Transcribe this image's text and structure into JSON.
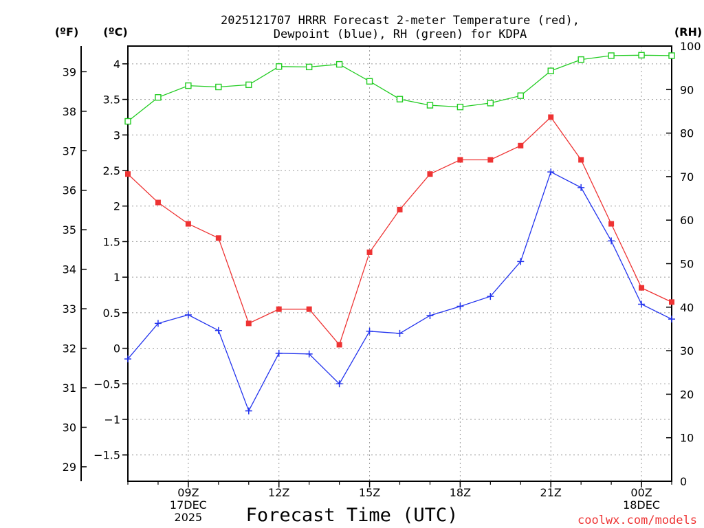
{
  "chart_data": {
    "type": "line",
    "title_lines": [
      "2025121707 HRRR Forecast 2-meter Temperature (red),",
      "Dewpoint (blue), RH (green) for KDPA"
    ],
    "xlabel": "Forecast Time (UTC)",
    "credit": "coolwx.com/models",
    "units": {
      "fahrenheit": "(ºF)",
      "celsius": "(ºC)",
      "rh": "(RH)"
    },
    "x_hours": [
      7,
      8,
      9,
      10,
      11,
      12,
      13,
      14,
      15,
      16,
      17,
      18,
      19,
      20,
      21,
      22,
      23,
      24,
      25
    ],
    "x_ticks": [
      {
        "hour": 9,
        "lines": [
          "09Z",
          "17DEC",
          "2025"
        ]
      },
      {
        "hour": 12,
        "lines": [
          "12Z"
        ]
      },
      {
        "hour": 15,
        "lines": [
          "15Z"
        ]
      },
      {
        "hour": 18,
        "lines": [
          "18Z"
        ]
      },
      {
        "hour": 21,
        "lines": [
          "21Z"
        ]
      },
      {
        "hour": 24,
        "lines": [
          "00Z",
          "18DEC"
        ]
      }
    ],
    "celsius_axis": {
      "ylim": [
        -1.87,
        4.25
      ],
      "ticks": [
        4,
        3.5,
        3,
        2.5,
        2,
        1.5,
        1,
        0.5,
        0,
        -0.5,
        -1,
        -1.5
      ],
      "labels": [
        "4",
        "3.5",
        "3",
        "2.5",
        "2",
        "1.5",
        "1",
        "0.5",
        "0",
        "−0.5",
        "−1",
        "−1.5"
      ]
    },
    "fahrenheit_axis": {
      "ticks": [
        39,
        38,
        37,
        36,
        35,
        34,
        33,
        32,
        31,
        30,
        29
      ],
      "labels": [
        "39",
        "38",
        "37",
        "36",
        "35",
        "34",
        "33",
        "32",
        "31",
        "30",
        "29"
      ]
    },
    "rh_axis": {
      "ylim": [
        0,
        100
      ],
      "ticks": [
        100,
        90,
        80,
        70,
        60,
        50,
        40,
        30,
        20,
        10,
        0
      ],
      "labels": [
        "100",
        "90",
        "80",
        "70",
        "60",
        "50",
        "40",
        "30",
        "20",
        "10",
        "0"
      ]
    },
    "series": [
      {
        "name": "2-meter Temperature",
        "axis": "celsius",
        "color": "#ee3333",
        "marker": "filled-square",
        "values": [
          2.45,
          2.05,
          1.75,
          1.55,
          0.35,
          0.55,
          0.55,
          0.05,
          1.35,
          1.95,
          2.45,
          2.65,
          2.65,
          2.85,
          3.25,
          2.65,
          1.75,
          0.85,
          0.65
        ]
      },
      {
        "name": "Dewpoint",
        "axis": "celsius",
        "color": "#2233ee",
        "marker": "plus",
        "values": [
          -0.15,
          0.35,
          0.47,
          0.25,
          -0.88,
          -0.07,
          -0.08,
          -0.5,
          0.24,
          0.21,
          0.46,
          0.59,
          0.73,
          1.22,
          2.48,
          2.26,
          1.51,
          0.62,
          0.41
        ]
      },
      {
        "name": "RH",
        "axis": "rh",
        "color": "#22cc22",
        "marker": "open-square",
        "values": [
          82.7,
          88.2,
          90.9,
          90.6,
          91.1,
          95.3,
          95.2,
          95.8,
          91.9,
          87.8,
          86.4,
          86.0,
          86.9,
          88.6,
          94.3,
          96.9,
          97.8,
          97.9,
          97.8
        ]
      }
    ]
  }
}
